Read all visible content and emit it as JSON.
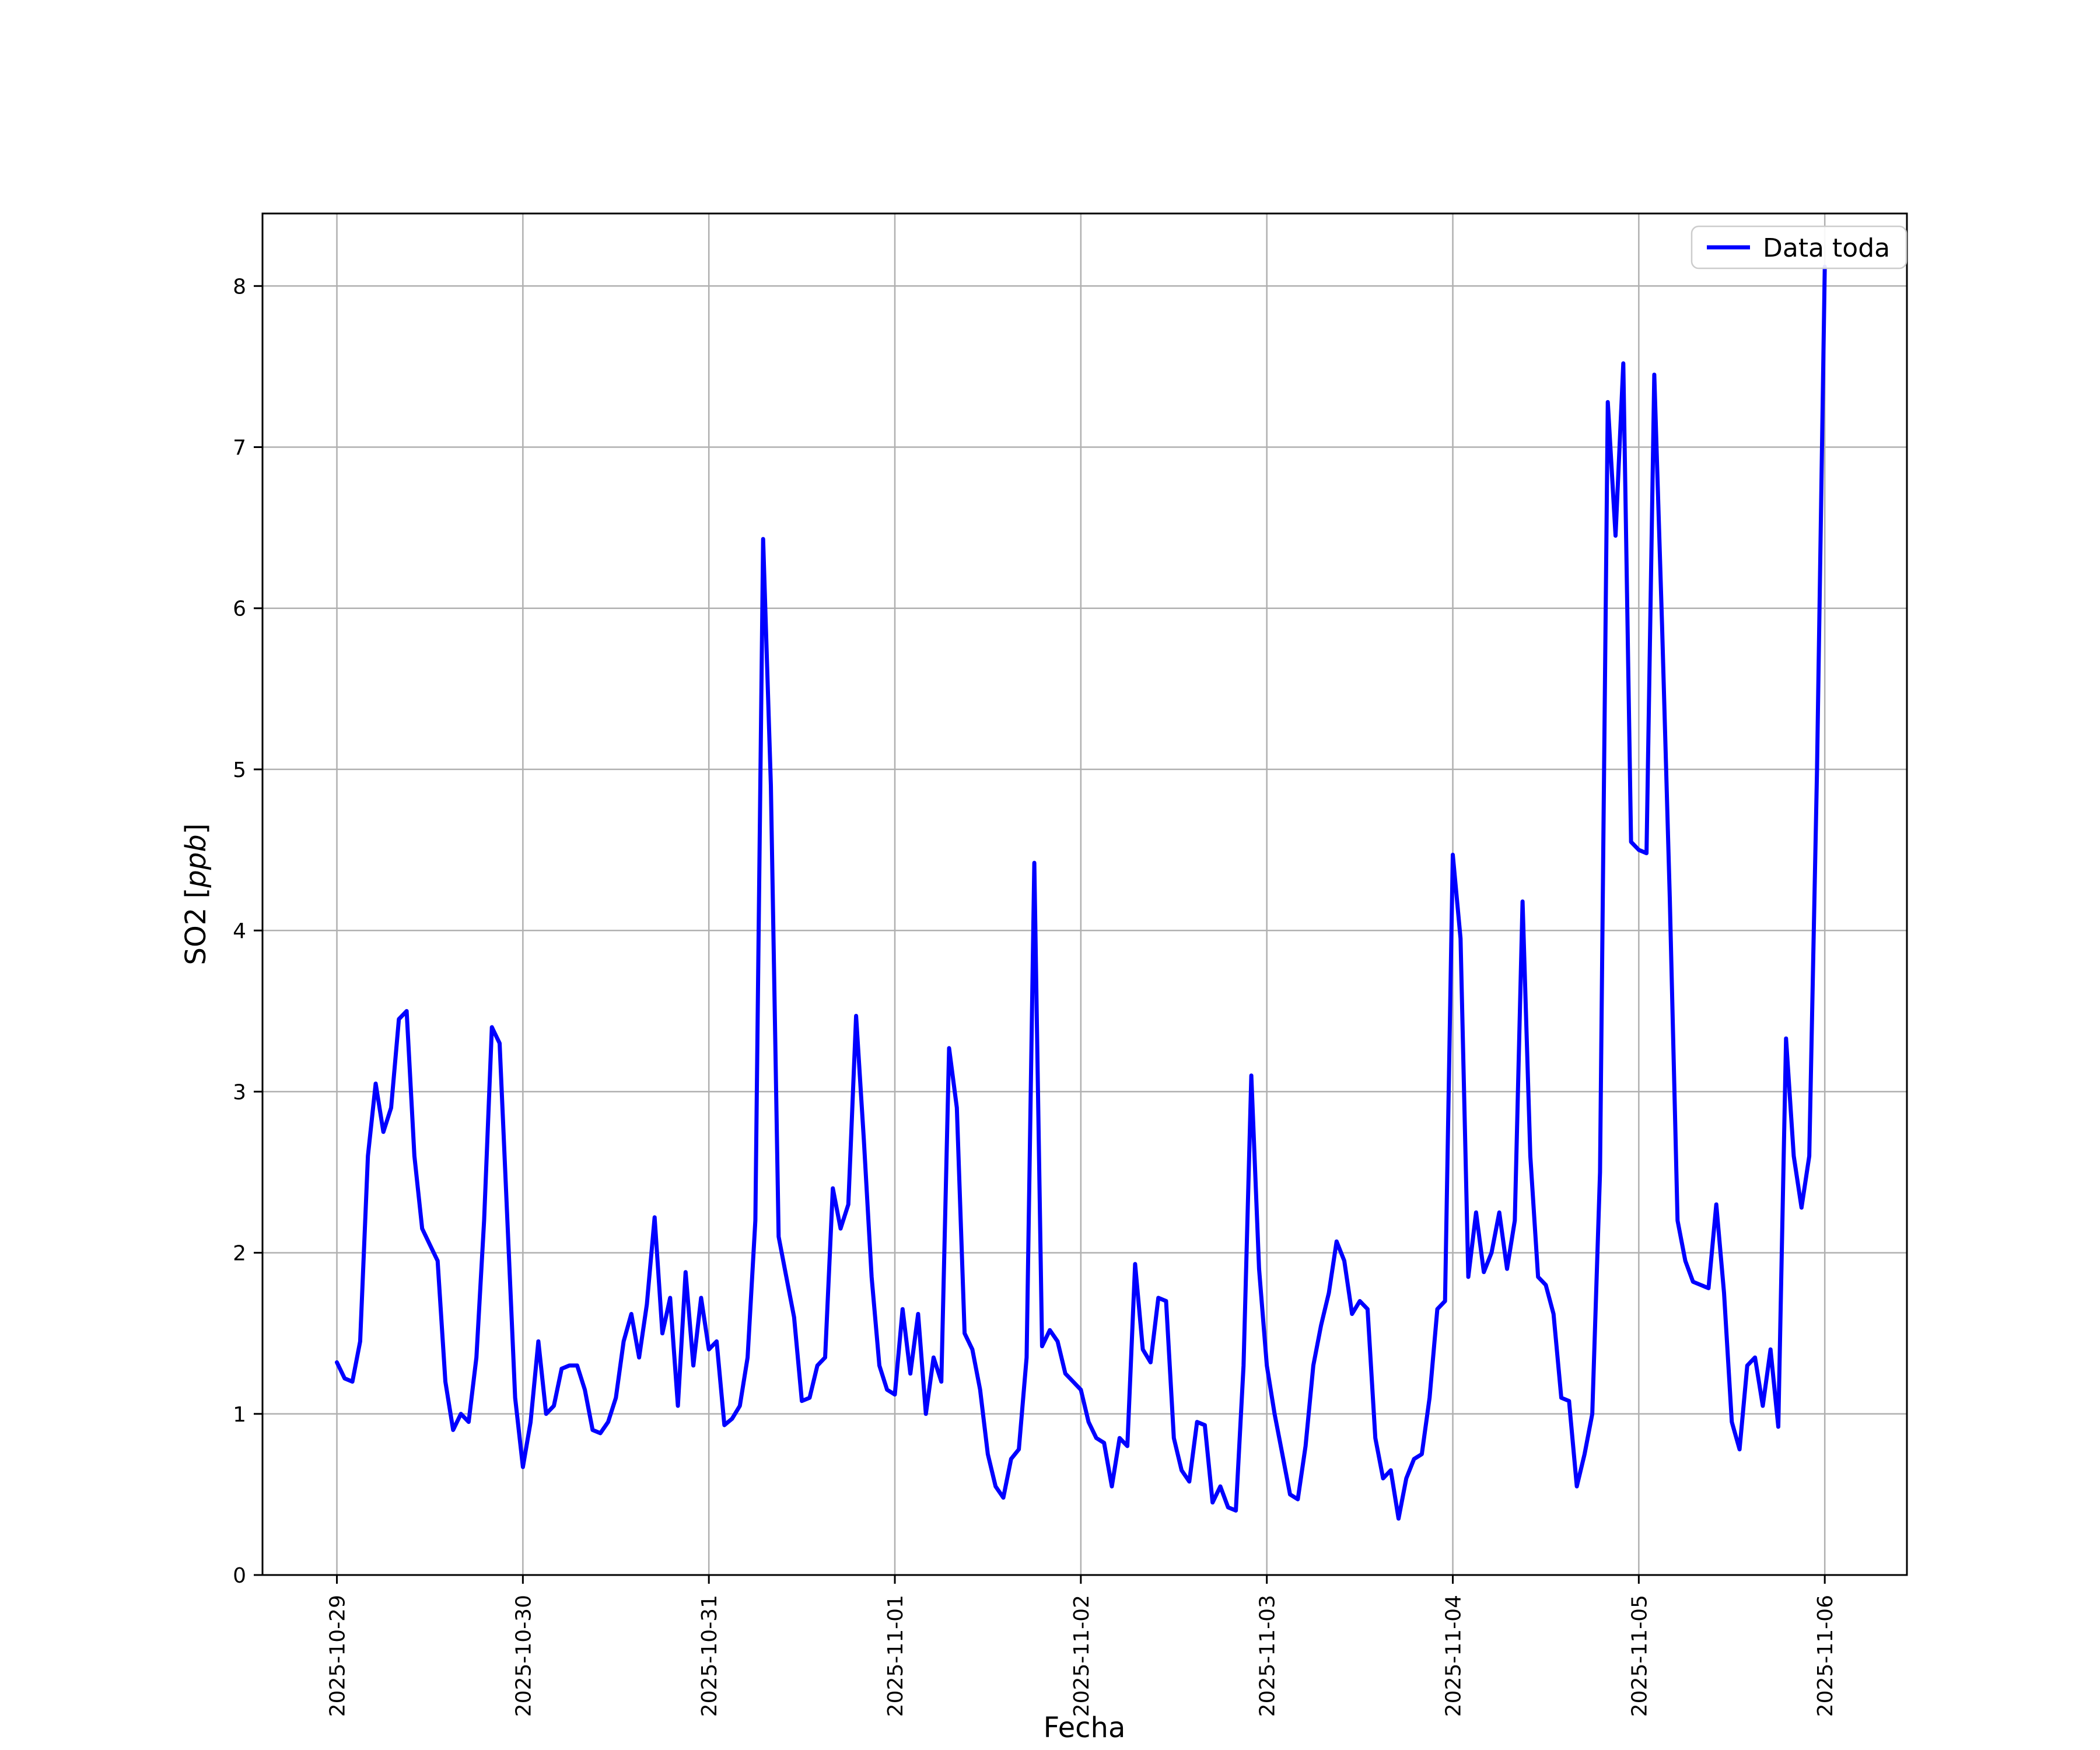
{
  "page": {
    "background": "#ffffff"
  },
  "chart_data": {
    "type": "line",
    "title": "",
    "xlabel": "Fecha",
    "ylabel": "SO2 [ppb]",
    "ylabel_parts": {
      "prefix": "SO2 [",
      "italic": "ppb",
      "suffix": "]"
    },
    "grid": true,
    "grid_color": "#b0b0b0",
    "line_color": "#0000ff",
    "legend": {
      "location": "upper right",
      "entries": [
        {
          "label": "Data toda",
          "color": "#0000ff"
        }
      ]
    },
    "x_unit": "hours since 2025-10-29 00:00 (hourly samples)",
    "x_step_hours": 1,
    "x_tick_hours": [
      0,
      24,
      48,
      72,
      96,
      120,
      144,
      168,
      192
    ],
    "x_tick_labels": [
      "2025-10-29",
      "2025-10-30",
      "2025-10-31",
      "2025-11-01",
      "2025-11-02",
      "2025-11-03",
      "2025-11-04",
      "2025-11-05",
      "2025-11-06"
    ],
    "y_ticks": [
      0,
      1,
      2,
      3,
      4,
      5,
      6,
      7,
      8
    ],
    "xlim_hours": [
      -9.6,
      202.6
    ],
    "ylim": [
      0,
      8.45
    ],
    "series": [
      {
        "name": "Data toda",
        "color": "#0000ff",
        "values": [
          1.32,
          1.22,
          1.2,
          1.45,
          2.6,
          3.05,
          2.75,
          2.9,
          3.45,
          3.5,
          2.6,
          2.15,
          2.05,
          1.95,
          1.2,
          0.9,
          1.0,
          0.95,
          1.35,
          2.2,
          3.4,
          3.3,
          2.2,
          1.1,
          0.67,
          0.95,
          1.45,
          1.0,
          1.05,
          1.28,
          1.3,
          1.3,
          1.15,
          0.9,
          0.88,
          0.95,
          1.1,
          1.45,
          1.62,
          1.35,
          1.68,
          2.22,
          1.5,
          1.72,
          1.05,
          1.88,
          1.3,
          1.72,
          1.4,
          1.45,
          0.93,
          0.97,
          1.05,
          1.35,
          2.2,
          6.43,
          4.9,
          2.1,
          1.85,
          1.6,
          1.08,
          1.1,
          1.3,
          1.35,
          2.4,
          2.15,
          2.3,
          3.47,
          2.7,
          1.85,
          1.3,
          1.15,
          1.12,
          1.65,
          1.25,
          1.62,
          1.0,
          1.35,
          1.2,
          3.27,
          2.9,
          1.5,
          1.4,
          1.15,
          0.75,
          0.55,
          0.48,
          0.72,
          0.78,
          1.35,
          4.42,
          1.42,
          1.52,
          1.45,
          1.25,
          1.2,
          1.15,
          0.95,
          0.85,
          0.82,
          0.55,
          0.85,
          0.8,
          1.93,
          1.4,
          1.32,
          1.72,
          1.7,
          0.85,
          0.65,
          0.58,
          0.95,
          0.93,
          0.45,
          0.55,
          0.42,
          0.4,
          1.3,
          3.1,
          1.9,
          1.3,
          1.0,
          0.75,
          0.5,
          0.47,
          0.8,
          1.3,
          1.55,
          1.75,
          2.07,
          1.95,
          1.62,
          1.7,
          1.65,
          0.85,
          0.6,
          0.65,
          0.35,
          0.6,
          0.72,
          0.75,
          1.1,
          1.65,
          1.7,
          4.47,
          3.95,
          1.85,
          2.25,
          1.88,
          2.0,
          2.25,
          1.9,
          2.2,
          4.18,
          2.6,
          1.85,
          1.8,
          1.62,
          1.1,
          1.08,
          0.55,
          0.75,
          1.0,
          2.5,
          7.28,
          6.45,
          7.52,
          4.55,
          4.5,
          4.48,
          7.45,
          5.9,
          4.2,
          2.2,
          1.95,
          1.82,
          1.8,
          1.78,
          2.3,
          1.75,
          0.95,
          0.78,
          1.3,
          1.35,
          1.05,
          1.4,
          0.92,
          3.33,
          2.6,
          2.28,
          2.6,
          5.0,
          8.12
        ]
      }
    ]
  }
}
